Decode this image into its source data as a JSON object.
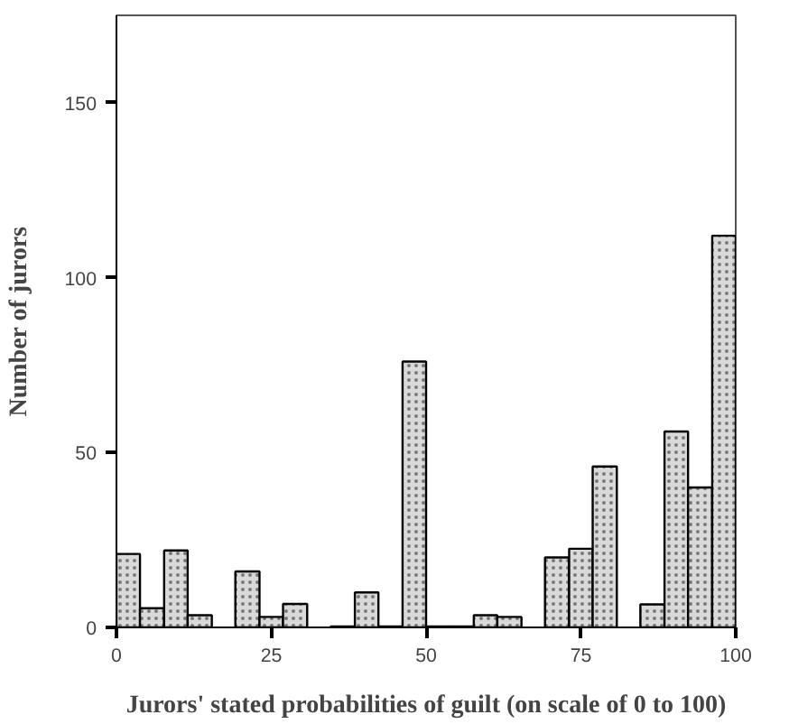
{
  "chart_data": {
    "type": "histogram",
    "xlabel": "Jurors' stated probabilities of guilt (on scale of 0 to 100)",
    "ylabel": "Number of jurors",
    "bins": [
      0,
      3.8,
      7.7,
      11.5,
      15.4,
      19.2,
      23.1,
      26.9,
      30.8,
      34.6,
      38.5,
      42.3,
      46.2,
      50,
      53.8,
      57.7,
      61.5,
      65.4,
      69.2,
      73.1,
      76.9,
      80.8,
      84.6,
      88.5,
      92.3,
      96.2,
      100
    ],
    "values": [
      21,
      5.5,
      22,
      3.5,
      0,
      16,
      3,
      6.7,
      0,
      0.3,
      10,
      0.3,
      76,
      0.3,
      0.3,
      3.5,
      3,
      0,
      20,
      22.5,
      46,
      0,
      6.6,
      56,
      40,
      112
    ],
    "color": "#d9d9d9",
    "xlim": [
      0,
      100
    ],
    "ylim": [
      0,
      175
    ],
    "xticks": [
      0,
      25,
      50,
      75,
      100
    ],
    "yticks": [
      0,
      50,
      100,
      150
    ],
    "grid": false
  }
}
